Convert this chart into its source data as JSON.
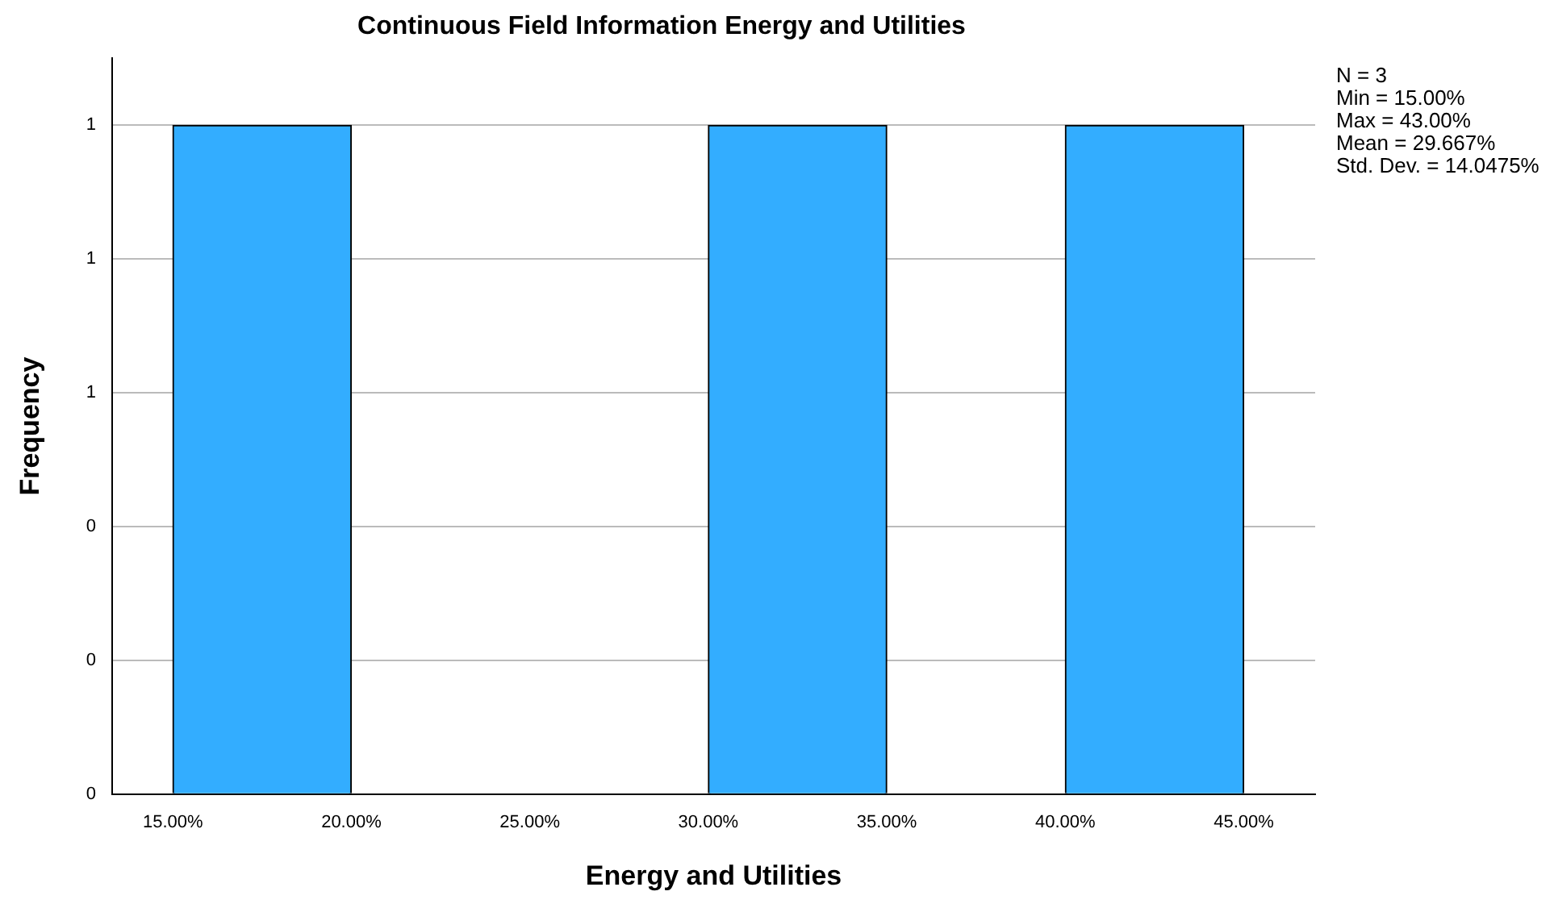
{
  "chart_data": {
    "type": "histogram",
    "title": "Continuous Field Information Energy and Utilities",
    "xlabel": "Energy and Utilities",
    "ylabel": "Frequency",
    "bins": [
      15,
      20,
      25,
      30,
      35,
      40,
      45
    ],
    "values": [
      1,
      0,
      0,
      1,
      0,
      1
    ],
    "color": "#33adff",
    "xlim": [
      13.3,
      47
    ],
    "xticks": [
      {
        "value": 15,
        "label": "15.00%"
      },
      {
        "value": 20,
        "label": "20.00%"
      },
      {
        "value": 25,
        "label": "25.00%"
      },
      {
        "value": 30,
        "label": "30.00%"
      },
      {
        "value": 35,
        "label": "35.00%"
      },
      {
        "value": 40,
        "label": "40.00%"
      },
      {
        "value": 45,
        "label": "45.00%"
      }
    ],
    "ylim": [
      0,
      1.1
    ],
    "yticks": [
      0,
      {
        "value": 0.2,
        "label": "0"
      },
      {
        "value": 0.4,
        "label": "0"
      },
      {
        "value": 0.6,
        "label": "1"
      },
      {
        "value": 0.8,
        "label": "1"
      },
      1
    ],
    "grid": "y",
    "annotations": [
      "N = 3",
      "Min = 15.00%",
      "Max = 43.00%",
      "Mean = 29.667%",
      "Std. Dev. = 14.0475%"
    ]
  }
}
